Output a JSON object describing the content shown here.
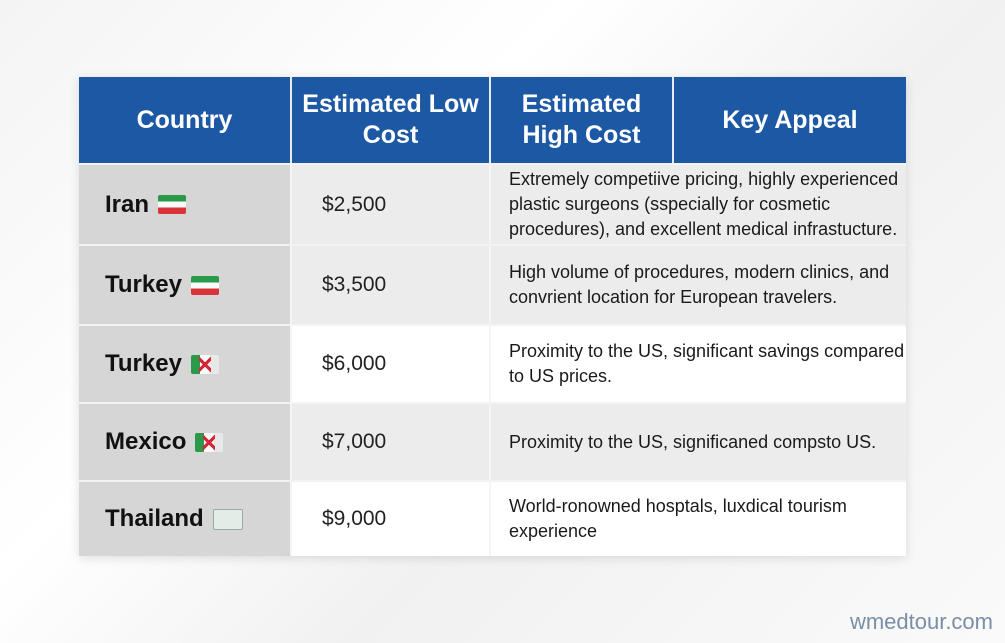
{
  "table": {
    "headers": [
      "Country",
      "Estimated Low Cost",
      "Estimated High Cost",
      "Key Appeal"
    ],
    "header_color": "#1d58a4",
    "rows": [
      {
        "country": "Iran",
        "flag": "iran-flag-icon",
        "low_cost": "$2,500",
        "appeal": "Extremely competiive pricing, highly experienced plastic surgeons (sspecially for cosmetic procedures), and excellent medical infrastucture."
      },
      {
        "country": "Turkey",
        "flag": "iran-flag-icon",
        "low_cost": "$3,500",
        "appeal": "High volume of procedures, modern clinics, and convrient location for European travelers."
      },
      {
        "country": "Turkey",
        "flag": "mexico-like-flag-icon",
        "low_cost": "$6,000",
        "appeal": "Proximity to the US, significant savings compared to US prices."
      },
      {
        "country": "Mexico",
        "flag": "mexico-like-flag-icon",
        "low_cost": "$7,000",
        "appeal": "Proximity to the US, significaned compsto US."
      },
      {
        "country": "Thailand",
        "flag": "thailand-flag-icon",
        "low_cost": "$9,000",
        "appeal": "World-ronowned hosptals, luxdical tourism experience"
      }
    ]
  },
  "watermark": "wmedtour.com"
}
